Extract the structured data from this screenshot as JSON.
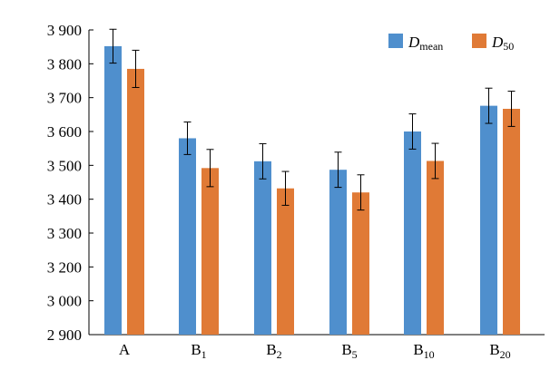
{
  "chart_data": {
    "type": "bar",
    "categories": [
      {
        "base": "A",
        "sub": ""
      },
      {
        "base": "B",
        "sub": "1"
      },
      {
        "base": "B",
        "sub": "2"
      },
      {
        "base": "B",
        "sub": "5"
      },
      {
        "base": "B",
        "sub": "10"
      },
      {
        "base": "B",
        "sub": "20"
      }
    ],
    "y_ticks": [
      {
        "label": "2 900",
        "value": 2900
      },
      {
        "label": "3 000",
        "value": 3000
      },
      {
        "label": "3 200",
        "value": 3200
      },
      {
        "label": "3 300",
        "value": 3300
      },
      {
        "label": "3 400",
        "value": 3400
      },
      {
        "label": "3 500",
        "value": 3500
      },
      {
        "label": "3 600",
        "value": 3600
      },
      {
        "label": "3 700",
        "value": 3700
      },
      {
        "label": "3 800",
        "value": 3800
      },
      {
        "label": "3 900",
        "value": 3900
      }
    ],
    "series": [
      {
        "name": "D",
        "name_sub": "mean",
        "color": "#4f8fcd",
        "values": [
          3852,
          3580,
          3512,
          3487,
          3600,
          3676
        ],
        "errors": [
          50,
          48,
          52,
          52,
          52,
          52
        ]
      },
      {
        "name": "D",
        "name_sub": "50",
        "color": "#e07a36",
        "values": [
          3785,
          3492,
          3432,
          3420,
          3513,
          3667
        ],
        "errors": [
          55,
          55,
          50,
          52,
          52,
          52
        ]
      }
    ],
    "legend_position": "top-right",
    "grid": false,
    "xlabel": "",
    "ylabel": "",
    "title": ""
  }
}
